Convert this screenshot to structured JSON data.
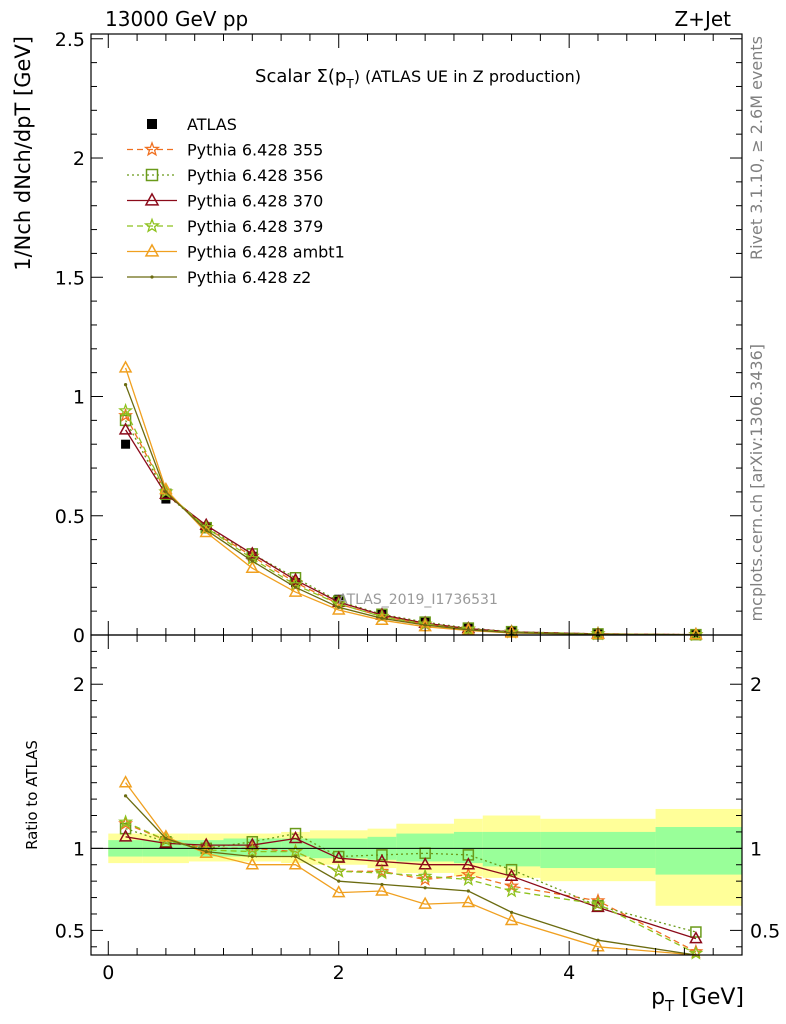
{
  "header": {
    "left": "13000 GeV pp",
    "right": "Z+Jet"
  },
  "side_labels": {
    "top": "Rivet 3.1.10, ≥ 2.6M events",
    "bottom": "mcplots.cern.ch [arXiv:1306.3436]"
  },
  "chart_data": {
    "type": "line",
    "title": "Scalar Σ(pT) (ATLAS UE in Z production)",
    "title_main": "Scalar Σ(p",
    "title_sub": "T",
    "title_tail": ") (ATLAS UE in Z production)",
    "watermark": "ATLAS_2019_I1736531",
    "xlabel": "pT [GeV]",
    "xlabel_main": "p",
    "xlabel_sub": "T",
    "xlabel_tail": " [GeV]",
    "ylabel": "1/Nch dNch/dpT [GeV]",
    "ratio_ylabel": "Ratio to ATLAS",
    "xlim": [
      -0.15,
      5.5
    ],
    "ylim": [
      0,
      2.52
    ],
    "ratio_ylim": [
      0.35,
      2.3
    ],
    "xticks": [
      0,
      2,
      4
    ],
    "yticks": [
      0,
      0.5,
      1,
      1.5,
      2,
      2.5
    ],
    "ytick_labels": [
      "0",
      "0.5",
      "1",
      "1.5",
      "2",
      "2.5"
    ],
    "ratio_yticks": [
      0.5,
      1,
      2
    ],
    "ratio_ytick_labels": [
      "0.5",
      "1",
      "2"
    ],
    "x": [
      0.15,
      0.5,
      0.85,
      1.25,
      1.625,
      2.0,
      2.375,
      2.75,
      3.125,
      3.5,
      4.25,
      5.1
    ],
    "bin_edges": [
      0.0,
      0.3,
      0.7,
      1.0,
      1.5,
      1.75,
      2.25,
      2.5,
      3.0,
      3.25,
      3.75,
      4.75,
      5.5
    ],
    "band_outer": [
      [
        0.91,
        1.09
      ],
      [
        0.91,
        1.09
      ],
      [
        0.92,
        1.09
      ],
      [
        0.92,
        1.09
      ],
      [
        0.91,
        1.1
      ],
      [
        0.9,
        1.11
      ],
      [
        0.88,
        1.12
      ],
      [
        0.85,
        1.15
      ],
      [
        0.83,
        1.18
      ],
      [
        0.82,
        1.2
      ],
      [
        0.8,
        1.18
      ],
      [
        0.65,
        1.24
      ]
    ],
    "band_inner": [
      [
        0.95,
        1.05
      ],
      [
        0.95,
        1.05
      ],
      [
        0.95,
        1.05
      ],
      [
        0.95,
        1.06
      ],
      [
        0.95,
        1.06
      ],
      [
        0.94,
        1.06
      ],
      [
        0.93,
        1.07
      ],
      [
        0.92,
        1.09
      ],
      [
        0.91,
        1.1
      ],
      [
        0.89,
        1.1
      ],
      [
        0.88,
        1.1
      ],
      [
        0.84,
        1.13
      ]
    ],
    "series": [
      {
        "name": "ATLAS",
        "values": [
          0.8,
          0.57,
          0.45,
          0.33,
          0.22,
          0.15,
          0.09,
          0.055,
          0.03,
          0.016,
          0.007,
          0.003
        ],
        "ratio": [
          1,
          1,
          1,
          1,
          1,
          1,
          1,
          1,
          1,
          1,
          1,
          1
        ],
        "color": "#000000",
        "marker": "square",
        "dash": ""
      },
      {
        "name": "Pythia 6.428 355",
        "values": [
          0.92,
          0.6,
          0.45,
          0.33,
          0.22,
          0.13,
          0.078,
          0.045,
          0.025,
          0.012,
          0.0047,
          0.0011
        ],
        "ratio": [
          1.15,
          1.05,
          1.0,
          1.0,
          0.98,
          0.86,
          0.86,
          0.81,
          0.84,
          0.77,
          0.68,
          0.37
        ],
        "color": "#f07020",
        "marker": "star",
        "dash": "6,4"
      },
      {
        "name": "Pythia 6.428 356",
        "values": [
          0.9,
          0.59,
          0.45,
          0.34,
          0.24,
          0.142,
          0.087,
          0.054,
          0.029,
          0.014,
          0.0046,
          0.0015
        ],
        "ratio": [
          1.12,
          1.04,
          1.0,
          1.04,
          1.09,
          0.95,
          0.96,
          0.97,
          0.96,
          0.87,
          0.65,
          0.49
        ],
        "color": "#6a9a1a",
        "marker": "opensquare",
        "dash": "2,3"
      },
      {
        "name": "Pythia 6.428 370",
        "values": [
          0.86,
          0.59,
          0.46,
          0.34,
          0.23,
          0.138,
          0.084,
          0.05,
          0.027,
          0.013,
          0.0045,
          0.0013
        ],
        "ratio": [
          1.07,
          1.03,
          1.02,
          1.02,
          1.06,
          0.94,
          0.92,
          0.9,
          0.9,
          0.83,
          0.64,
          0.45
        ],
        "color": "#8b0a1a",
        "marker": "opentriangle",
        "dash": ""
      },
      {
        "name": "Pythia 6.428 379",
        "values": [
          0.94,
          0.6,
          0.45,
          0.32,
          0.21,
          0.13,
          0.077,
          0.046,
          0.024,
          0.012,
          0.0046,
          0.0011
        ],
        "ratio": [
          1.16,
          1.05,
          0.99,
          0.98,
          0.98,
          0.86,
          0.85,
          0.83,
          0.81,
          0.74,
          0.66,
          0.36
        ],
        "color": "#8ec21e",
        "marker": "star",
        "dash": "6,4"
      },
      {
        "name": "Pythia 6.428 ambt1",
        "values": [
          1.12,
          0.61,
          0.43,
          0.28,
          0.18,
          0.105,
          0.062,
          0.035,
          0.019,
          0.0085,
          0.0025,
          0.0008
        ],
        "ratio": [
          1.4,
          1.07,
          0.97,
          0.9,
          0.9,
          0.73,
          0.74,
          0.66,
          0.67,
          0.56,
          0.4,
          0.28
        ],
        "color": "#f0a020",
        "marker": "opentriangle",
        "dash": ""
      },
      {
        "name": "Pythia 6.428 z2",
        "values": [
          1.05,
          0.6,
          0.44,
          0.31,
          0.2,
          0.116,
          0.07,
          0.042,
          0.022,
          0.0097,
          0.003,
          0.0009
        ],
        "ratio": [
          1.32,
          1.06,
          0.98,
          0.95,
          0.95,
          0.8,
          0.78,
          0.76,
          0.74,
          0.61,
          0.44,
          0.3
        ],
        "color": "#6b6b10",
        "marker": "dot",
        "dash": ""
      }
    ]
  }
}
